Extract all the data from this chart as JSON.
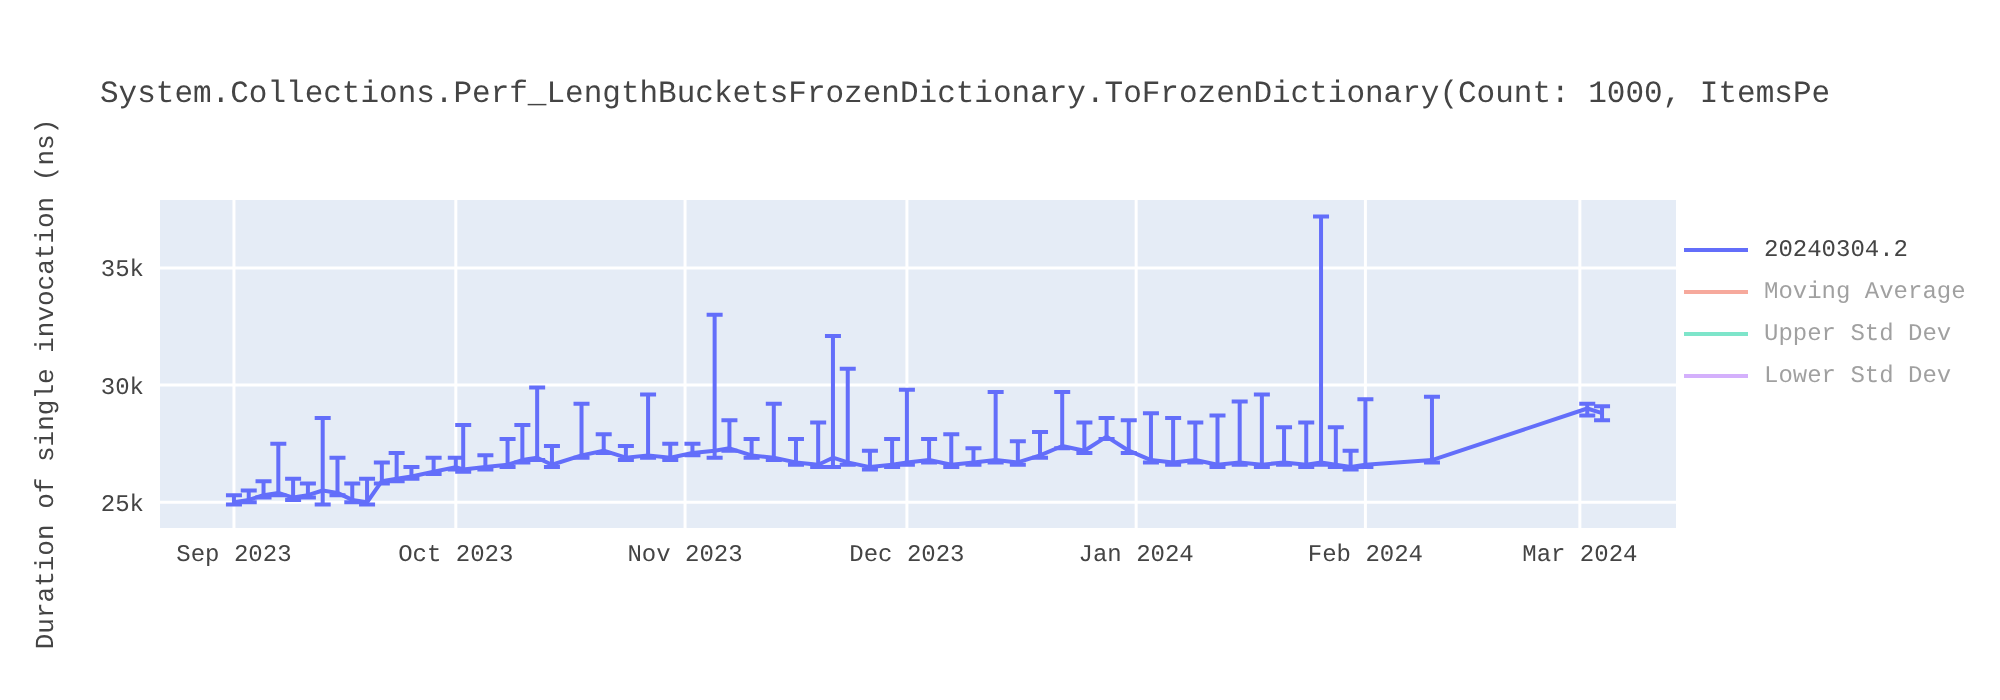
{
  "chart_data": {
    "type": "line",
    "title": "System.Collections.Perf_LengthBucketsFrozenDictionary.ToFrozenDictionary(Count: 1000, ItemsPe",
    "ylabel": "Duration of single invocation (ns)",
    "xlim": [
      "2023-08-22",
      "2024-03-14"
    ],
    "xticks": [
      {
        "value": "2023-09-01",
        "label": "Sep 2023"
      },
      {
        "value": "2023-10-01",
        "label": "Oct 2023"
      },
      {
        "value": "2023-11-01",
        "label": "Nov 2023"
      },
      {
        "value": "2023-12-01",
        "label": "Dec 2023"
      },
      {
        "value": "2024-01-01",
        "label": "Jan 2024"
      },
      {
        "value": "2024-02-01",
        "label": "Feb 2024"
      },
      {
        "value": "2024-03-01",
        "label": "Mar 2024"
      }
    ],
    "ylim": [
      23900,
      37900
    ],
    "yticks": [
      {
        "value": 25000,
        "label": "25k"
      },
      {
        "value": 30000,
        "label": "30k"
      },
      {
        "value": 35000,
        "label": "35k"
      }
    ],
    "grid": true,
    "legend": "top right",
    "marker": "none",
    "line_style": "solid",
    "x": [
      "2023-09-01",
      "2023-09-03",
      "2023-09-05",
      "2023-09-07",
      "2023-09-09",
      "2023-09-11",
      "2023-09-13",
      "2023-09-15",
      "2023-09-17",
      "2023-09-19",
      "2023-09-21",
      "2023-09-23",
      "2023-09-25",
      "2023-09-28",
      "2023-10-01",
      "2023-10-02",
      "2023-10-05",
      "2023-10-08",
      "2023-10-10",
      "2023-10-12",
      "2023-10-14",
      "2023-10-18",
      "2023-10-21",
      "2023-10-24",
      "2023-10-27",
      "2023-10-30",
      "2023-11-02",
      "2023-11-05",
      "2023-11-07",
      "2023-11-10",
      "2023-11-13",
      "2023-11-16",
      "2023-11-19",
      "2023-11-21",
      "2023-11-23",
      "2023-11-26",
      "2023-11-29",
      "2023-12-01",
      "2023-12-04",
      "2023-12-07",
      "2023-12-10",
      "2023-12-13",
      "2023-12-16",
      "2023-12-19",
      "2023-12-22",
      "2023-12-25",
      "2023-12-28",
      "2023-12-31",
      "2024-01-03",
      "2024-01-06",
      "2024-01-09",
      "2024-01-12",
      "2024-01-15",
      "2024-01-18",
      "2024-01-21",
      "2024-01-24",
      "2024-01-26",
      "2024-01-28",
      "2024-01-30",
      "2024-02-01",
      "2024-02-10",
      "2024-03-02",
      "2024-03-04"
    ],
    "series": [
      {
        "name": "20240304.2",
        "color": "#636efa",
        "values": [
          25000,
          25100,
          25300,
          25400,
          25200,
          25300,
          25500,
          25400,
          25100,
          25000,
          25900,
          26000,
          26100,
          26300,
          26500,
          26400,
          26500,
          26600,
          26800,
          26900,
          26600,
          27000,
          27200,
          26900,
          27000,
          26900,
          27100,
          27200,
          27300,
          27000,
          26900,
          26700,
          26600,
          26900,
          26700,
          26500,
          26600,
          26700,
          26800,
          26600,
          26700,
          26800,
          26700,
          27000,
          27400,
          27200,
          27800,
          27200,
          26800,
          26700,
          26800,
          26600,
          26700,
          26600,
          26700,
          26600,
          26700,
          26600,
          26500,
          26600,
          26800,
          29000,
          28800
        ],
        "errors": [
          [
            24900,
            25300
          ],
          [
            25000,
            25500
          ],
          [
            25200,
            25900
          ],
          [
            25300,
            27500
          ],
          [
            25100,
            26000
          ],
          [
            25200,
            25800
          ],
          [
            24900,
            28600
          ],
          [
            25300,
            26900
          ],
          [
            25000,
            25800
          ],
          [
            24900,
            26000
          ],
          [
            25800,
            26700
          ],
          [
            25900,
            27100
          ],
          [
            26000,
            26500
          ],
          [
            26200,
            26900
          ],
          [
            26400,
            26900
          ],
          [
            26300,
            28300
          ],
          [
            26400,
            27000
          ],
          [
            26500,
            27700
          ],
          [
            26700,
            28300
          ],
          [
            26800,
            29900
          ],
          [
            26500,
            27400
          ],
          [
            26900,
            29200
          ],
          [
            27100,
            27900
          ],
          [
            26800,
            27400
          ],
          [
            26900,
            29600
          ],
          [
            26800,
            27500
          ],
          [
            27000,
            27500
          ],
          [
            26900,
            33000
          ],
          [
            27200,
            28500
          ],
          [
            26900,
            27700
          ],
          [
            26800,
            29200
          ],
          [
            26600,
            27700
          ],
          [
            26500,
            28400
          ],
          [
            26500,
            32100
          ],
          [
            26600,
            30700
          ],
          [
            26400,
            27200
          ],
          [
            26500,
            27700
          ],
          [
            26600,
            29800
          ],
          [
            26700,
            27700
          ],
          [
            26500,
            27900
          ],
          [
            26600,
            27300
          ],
          [
            26700,
            29700
          ],
          [
            26600,
            27600
          ],
          [
            26900,
            28000
          ],
          [
            27300,
            29700
          ],
          [
            27100,
            28400
          ],
          [
            27700,
            28600
          ],
          [
            27100,
            28500
          ],
          [
            26700,
            28800
          ],
          [
            26600,
            28600
          ],
          [
            26700,
            28400
          ],
          [
            26500,
            28700
          ],
          [
            26600,
            29300
          ],
          [
            26500,
            29600
          ],
          [
            26600,
            28200
          ],
          [
            26500,
            28400
          ],
          [
            26600,
            37200
          ],
          [
            26500,
            28200
          ],
          [
            26400,
            27200
          ],
          [
            26500,
            29400
          ],
          [
            26700,
            29500
          ],
          [
            28700,
            29200
          ],
          [
            28500,
            29100
          ]
        ]
      },
      {
        "name": "Moving Average",
        "color": "#ef553b",
        "values": [
          null,
          null,
          null,
          null,
          null,
          null,
          null,
          null,
          null,
          null,
          null,
          null,
          null,
          null,
          null,
          null,
          null,
          null,
          null,
          null,
          null,
          null,
          null,
          null,
          null,
          null,
          null,
          null,
          null,
          null,
          null,
          null,
          null,
          null,
          null,
          null,
          null,
          null,
          null,
          null,
          null,
          null,
          null,
          null,
          null,
          null,
          null,
          null,
          null,
          null,
          null,
          null,
          null,
          null,
          null,
          null,
          null,
          null,
          null,
          null,
          null,
          null,
          null
        ]
      },
      {
        "name": "Upper Std Dev",
        "color": "#00cc96",
        "values": [
          null,
          null,
          null,
          null,
          null,
          null,
          null,
          null,
          null,
          null,
          null,
          null,
          null,
          null,
          null,
          null,
          null,
          null,
          null,
          null,
          null,
          null,
          null,
          null,
          null,
          null,
          null,
          null,
          null,
          null,
          null,
          null,
          null,
          null,
          null,
          null,
          null,
          null,
          null,
          null,
          null,
          null,
          null,
          null,
          null,
          null,
          null,
          null,
          null,
          null,
          null,
          null,
          null,
          null,
          null,
          null,
          null,
          null,
          null,
          null,
          null,
          null,
          null
        ]
      },
      {
        "name": "Lower Std Dev",
        "color": "#ab63fa",
        "values": [
          null,
          null,
          null,
          null,
          null,
          null,
          null,
          null,
          null,
          null,
          null,
          null,
          null,
          null,
          null,
          null,
          null,
          null,
          null,
          null,
          null,
          null,
          null,
          null,
          null,
          null,
          null,
          null,
          null,
          null,
          null,
          null,
          null,
          null,
          null,
          null,
          null,
          null,
          null,
          null,
          null,
          null,
          null,
          null,
          null,
          null,
          null,
          null,
          null,
          null,
          null,
          null,
          null,
          null,
          null,
          null,
          null,
          null,
          null,
          null,
          null,
          null,
          null
        ]
      }
    ]
  }
}
